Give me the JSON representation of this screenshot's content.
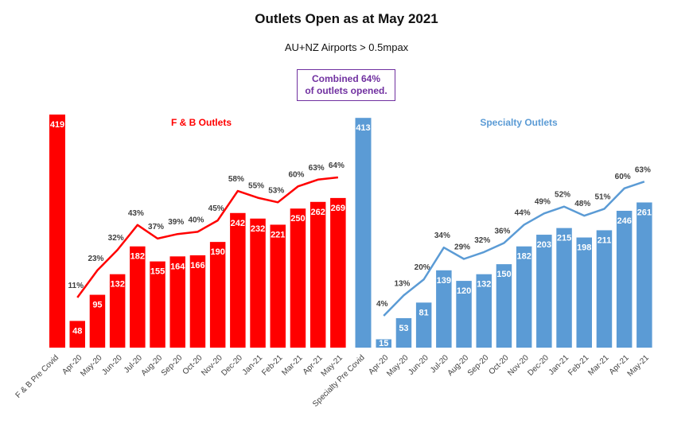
{
  "title": "Outlets Open as at May 2021",
  "subtitle": "AU+NZ Airports > 0.5mpax",
  "callout": "Combined 64%\nof outlets opened.",
  "colors": {
    "fb": "#FF0000",
    "specialty": "#5B9BD5",
    "callout": "#7030A0",
    "pct_text": "#404040"
  },
  "chart_data": [
    {
      "type": "bar",
      "title": "F & B Outlets",
      "baseline_label": "F & B Pre Covid",
      "baseline_value": 419,
      "categories": [
        "Apr-20",
        "May-20",
        "Jun-20",
        "Jul-20",
        "Aug-20",
        "Sep-20",
        "Oct-20",
        "Nov-20",
        "Dec-20",
        "Jan-21",
        "Feb-21",
        "Mar-21",
        "Apr-21",
        "May-21"
      ],
      "values": [
        48,
        95,
        132,
        182,
        155,
        164,
        166,
        190,
        242,
        232,
        221,
        250,
        262,
        269
      ],
      "line_percent": [
        "11%",
        "23%",
        "32%",
        "43%",
        "37%",
        "39%",
        "40%",
        "45%",
        "58%",
        "55%",
        "53%",
        "60%",
        "63%",
        "64%"
      ]
    },
    {
      "type": "bar",
      "title": "Specialty Outlets",
      "baseline_label": "Specialty Pre Covid",
      "baseline_value": 413,
      "categories": [
        "Apr-20",
        "May-20",
        "Jun-20",
        "Jul-20",
        "Aug-20",
        "Sep-20",
        "Oct-20",
        "Nov-20",
        "Dec-20",
        "Jan-21",
        "Feb-21",
        "Mar-21",
        "Apr-21",
        "May-21"
      ],
      "values": [
        15,
        53,
        81,
        139,
        120,
        132,
        150,
        182,
        203,
        215,
        198,
        211,
        246,
        261
      ],
      "line_percent": [
        "4%",
        "13%",
        "20%",
        "34%",
        "29%",
        "32%",
        "36%",
        "44%",
        "49%",
        "52%",
        "48%",
        "51%",
        "60%",
        "63%"
      ]
    }
  ]
}
